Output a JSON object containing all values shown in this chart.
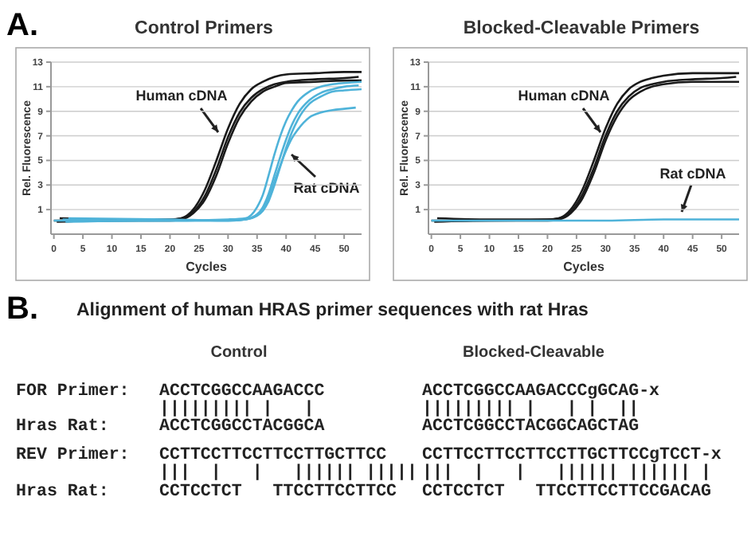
{
  "chart_data": [
    {
      "type": "line",
      "title": "Control Primers",
      "xlabel": "Cycles",
      "ylabel": "Rel. Fluorescence",
      "xlim": [
        -0.5,
        53
      ],
      "ylim": [
        -1,
        13
      ],
      "xticks": [
        0,
        5,
        10,
        15,
        20,
        25,
        30,
        35,
        40,
        45,
        50
      ],
      "yticks": [
        1,
        3,
        5,
        7,
        9,
        11,
        13
      ],
      "grid": "y",
      "marker": "none",
      "line_style": "solid",
      "annotations": [
        "A.",
        "Human cDNA",
        "Rat cDNA"
      ],
      "series": [
        {
          "color": "#1a1a1a",
          "x": [
            0,
            10,
            20,
            22,
            24,
            26,
            28,
            30,
            32,
            34,
            36,
            38,
            40,
            45,
            50,
            53
          ],
          "values": [
            0.1,
            0.1,
            0.2,
            0.3,
            1.0,
            2.6,
            5.0,
            7.6,
            9.6,
            10.8,
            11.4,
            11.8,
            12.0,
            12.1,
            12.2,
            12.2
          ]
        },
        {
          "color": "#1a1a1a",
          "x": [
            1,
            10,
            20,
            22,
            24,
            26,
            28,
            30,
            32,
            34,
            36,
            38,
            40,
            45,
            50,
            52.5
          ],
          "values": [
            0.3,
            0.2,
            0.2,
            0.3,
            0.8,
            2.1,
            4.3,
            6.9,
            8.9,
            10.1,
            10.8,
            11.2,
            11.4,
            11.6,
            11.7,
            11.8
          ]
        },
        {
          "color": "#1a1a1a",
          "x": [
            0.5,
            10,
            20,
            22,
            24,
            26,
            28,
            30,
            32,
            34,
            36,
            38,
            40,
            45,
            50,
            53
          ],
          "values": [
            0.0,
            0.1,
            0.1,
            0.2,
            0.7,
            1.8,
            3.8,
            6.4,
            8.5,
            9.8,
            10.6,
            11.0,
            11.3,
            11.4,
            11.5,
            11.5
          ]
        },
        {
          "color": "#4fb3d9",
          "x": [
            0,
            20,
            30,
            33,
            35,
            36,
            37,
            38,
            39,
            40,
            41,
            42,
            44,
            46,
            48,
            50,
            53
          ],
          "values": [
            0.1,
            0.1,
            0.2,
            0.3,
            1.2,
            2.2,
            3.8,
            5.5,
            7.0,
            8.2,
            9.1,
            9.8,
            10.6,
            11.0,
            11.2,
            11.3,
            11.4
          ]
        },
        {
          "color": "#4fb3d9",
          "x": [
            1.5,
            20,
            30,
            33,
            35,
            36,
            37,
            38,
            39,
            40,
            41,
            42,
            44,
            46,
            48,
            50,
            52.5
          ],
          "values": [
            0.2,
            0.1,
            0.1,
            0.2,
            0.6,
            1.2,
            2.3,
            3.8,
            5.3,
            6.7,
            7.9,
            8.8,
            9.9,
            10.5,
            10.8,
            11.0,
            11.1
          ]
        },
        {
          "color": "#4fb3d9",
          "x": [
            2,
            20,
            30,
            33,
            35,
            36,
            37,
            38,
            39,
            40,
            41,
            42,
            44,
            46,
            48,
            50,
            53
          ],
          "values": [
            0.0,
            0.1,
            0.1,
            0.2,
            0.5,
            0.9,
            1.7,
            3.0,
            4.5,
            6.0,
            7.3,
            8.3,
            9.6,
            10.2,
            10.6,
            10.7,
            10.8
          ]
        },
        {
          "color": "#4fb3d9",
          "x": [
            2.5,
            20,
            30,
            33,
            35,
            36,
            37,
            38,
            39,
            40,
            41,
            42,
            44,
            46,
            48,
            50,
            52
          ],
          "values": [
            0.3,
            0.2,
            0.1,
            0.2,
            0.6,
            1.1,
            2.0,
            3.3,
            4.6,
            5.8,
            6.8,
            7.5,
            8.5,
            8.9,
            9.1,
            9.2,
            9.3
          ]
        }
      ]
    },
    {
      "type": "line",
      "title": "Blocked-Cleavable Primers",
      "xlabel": "Cycles",
      "ylabel": "Rel. Fluorescence",
      "xlim": [
        -0.5,
        53
      ],
      "ylim": [
        -1,
        13
      ],
      "xticks": [
        0,
        5,
        10,
        15,
        20,
        25,
        30,
        35,
        40,
        45,
        50
      ],
      "yticks": [
        1,
        3,
        5,
        7,
        9,
        11,
        13
      ],
      "grid": "y",
      "marker": "none",
      "line_style": "solid",
      "annotations": [
        "Human cDNA",
        "Rat cDNA"
      ],
      "series": [
        {
          "color": "#1a1a1a",
          "x": [
            0,
            10,
            20,
            22,
            24,
            26,
            28,
            30,
            32,
            34,
            36,
            38,
            40,
            45,
            50,
            53
          ],
          "values": [
            0.1,
            0.1,
            0.2,
            0.3,
            1.0,
            2.6,
            5.0,
            7.6,
            9.6,
            10.8,
            11.4,
            11.7,
            11.9,
            12.1,
            12.1,
            12.1
          ]
        },
        {
          "color": "#1a1a1a",
          "x": [
            1,
            10,
            20,
            22,
            24,
            26,
            28,
            30,
            32,
            34,
            36,
            38,
            40,
            45,
            50,
            52.5
          ],
          "values": [
            0.3,
            0.2,
            0.2,
            0.3,
            0.8,
            2.2,
            4.4,
            7.0,
            9.0,
            10.2,
            10.9,
            11.2,
            11.4,
            11.6,
            11.7,
            11.8
          ]
        },
        {
          "color": "#1a1a1a",
          "x": [
            0.5,
            10,
            20,
            22,
            24,
            26,
            28,
            30,
            32,
            34,
            36,
            38,
            40,
            45,
            50,
            53
          ],
          "values": [
            0.0,
            0.1,
            0.1,
            0.2,
            0.7,
            1.9,
            4.0,
            6.6,
            8.6,
            9.9,
            10.6,
            11.0,
            11.2,
            11.4,
            11.4,
            11.4
          ]
        },
        {
          "color": "#4fb3d9",
          "x": [
            0,
            10,
            20,
            30,
            40,
            50,
            53
          ],
          "values": [
            0.1,
            0.1,
            0.1,
            0.1,
            0.2,
            0.2,
            0.2
          ]
        }
      ]
    },
    {
      "type": "other",
      "title": "Alignment of human HRAS primer sequences with rat Hras",
      "annotations": [
        "B.",
        "Control",
        "Blocked-Cleavable",
        "FOR Primer:",
        "ACCTCGGCCAAGACCC",
        "ACCTCGGCCAAGACCCgGCAG-x",
        "||||||||| |   |",
        "||||||||| |   | |  ||",
        "Hras Rat:",
        "ACCTCGGCCTACGGCA",
        "ACCTCGGCCTACGGCAGCTAG",
        "REV Primer:",
        "CCTTCCTTCCTTCCTTGCTTCC",
        "CCTTCCTTCCTTCCTTGCTTCCgTCCT-x",
        "|||  |   |   |||||| |||||",
        "|||  |   |   |||||| |||||| |",
        "Hras Rat:",
        "CCTCCTCT   TTCCTTCCTTCC",
        "CCTCCTCT   TTCCTTCCTTCCGACAG"
      ]
    }
  ]
}
